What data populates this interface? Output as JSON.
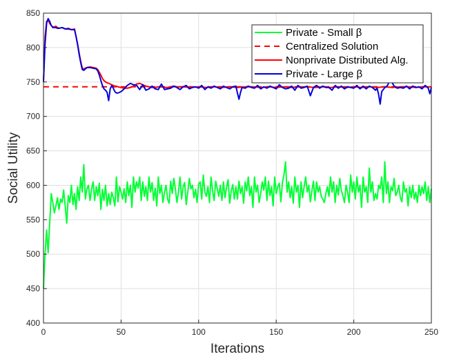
{
  "chart_data": {
    "type": "line",
    "xlabel": "Iterations",
    "ylabel": "Social Utility",
    "xlim": [
      0,
      250
    ],
    "ylim": [
      400,
      850
    ],
    "xticks": [
      "0",
      "50",
      "100",
      "150",
      "200",
      "250"
    ],
    "yticks": [
      "400",
      "450",
      "500",
      "550",
      "600",
      "650",
      "700",
      "750",
      "800",
      "850"
    ],
    "grid": true,
    "legend_position": "top-right",
    "series": [
      {
        "name": "Private  -  Small  β",
        "color": "#00ff33",
        "style": "solid",
        "x": [
          0,
          1,
          2,
          3,
          4,
          5,
          6,
          7,
          8,
          9,
          10,
          11,
          12,
          13,
          14,
          15,
          16,
          17,
          18,
          19,
          20,
          21,
          22,
          23,
          24,
          25,
          26,
          27,
          28,
          29,
          30,
          31,
          32,
          33,
          34,
          35,
          36,
          37,
          38,
          39,
          40,
          41,
          42,
          43,
          44,
          45,
          46,
          47,
          48,
          49,
          50,
          51,
          52,
          53,
          54,
          55,
          56,
          57,
          58,
          59,
          60,
          61,
          62,
          63,
          64,
          65,
          66,
          67,
          68,
          69,
          70,
          71,
          72,
          73,
          74,
          75,
          76,
          77,
          78,
          79,
          80,
          81,
          82,
          83,
          84,
          85,
          86,
          87,
          88,
          89,
          90,
          91,
          92,
          93,
          94,
          95,
          96,
          97,
          98,
          99,
          100,
          101,
          102,
          103,
          104,
          105,
          106,
          107,
          108,
          109,
          110,
          111,
          112,
          113,
          114,
          115,
          116,
          117,
          118,
          119,
          120,
          121,
          122,
          123,
          124,
          125,
          126,
          127,
          128,
          129,
          130,
          131,
          132,
          133,
          134,
          135,
          136,
          137,
          138,
          139,
          140,
          141,
          142,
          143,
          144,
          145,
          146,
          147,
          148,
          149,
          150,
          151,
          152,
          153,
          154,
          155,
          156,
          157,
          158,
          159,
          160,
          161,
          162,
          163,
          164,
          165,
          166,
          167,
          168,
          169,
          170,
          171,
          172,
          173,
          174,
          175,
          176,
          177,
          178,
          179,
          180,
          181,
          182,
          183,
          184,
          185,
          186,
          187,
          188,
          189,
          190,
          191,
          192,
          193,
          194,
          195,
          196,
          197,
          198,
          199,
          200,
          201,
          202,
          203,
          204,
          205,
          206,
          207,
          208,
          209,
          210,
          211,
          212,
          213,
          214,
          215,
          216,
          217,
          218,
          219,
          220,
          221,
          222,
          223,
          224,
          225,
          226,
          227,
          228,
          229,
          230,
          231,
          232,
          233,
          234,
          235,
          236,
          237,
          238,
          239,
          240,
          241,
          242,
          243,
          244,
          245,
          246,
          247,
          248,
          249,
          250
        ],
        "y": [
          450,
          500,
          535,
          502,
          545,
          588,
          575,
          560,
          570,
          582,
          565,
          580,
          575,
          593,
          570,
          545,
          585,
          575,
          600,
          572,
          588,
          565,
          598,
          578,
          612,
          590,
          630,
          580,
          595,
          600,
          578,
          595,
          605,
          578,
          598,
          585,
          603,
          565,
          594,
          578,
          600,
          570,
          588,
          572,
          590,
          582,
          570,
          612,
          576,
          598,
          590,
          580,
          595,
          575,
          605,
          585,
          600,
          568,
          612,
          590,
          605,
          596,
          612,
          578,
          605,
          584,
          598,
          578,
          612,
          590,
          604,
          578,
          596,
          570,
          612,
          588,
          600,
          575,
          590,
          600,
          580,
          574,
          606,
          588,
          610,
          595,
          575,
          590,
          612,
          580,
          598,
          604,
          572,
          590,
          610,
          595,
          600,
          582,
          594,
          575,
          602,
          605,
          580,
          615,
          590,
          584,
          598,
          575,
          612,
          592,
          578,
          606,
          595,
          584,
          600,
          578,
          605,
          582,
          597,
          608,
          574,
          592,
          601,
          580,
          598,
          580,
          606,
          588,
          598,
          574,
          605,
          592,
          612,
          585,
          598,
          568,
          612,
          590,
          600,
          575,
          588,
          605,
          593,
          612,
          578,
          606,
          585,
          598,
          570,
          612,
          588,
          598,
          603,
          576,
          604,
          615,
          634,
          590,
          605,
          582,
          598,
          574,
          612,
          590,
          600,
          568,
          605,
          582,
          598,
          612,
          590,
          600,
          576,
          592,
          606,
          578,
          605,
          590,
          598,
          584,
          580,
          575,
          588,
          598,
          584,
          612,
          590,
          605,
          575,
          600,
          586,
          610,
          592,
          585,
          575,
          600,
          590,
          575,
          615,
          590,
          605,
          580,
          612,
          590,
          600,
          568,
          612,
          590,
          598,
          575,
          625,
          590,
          605,
          578,
          588,
          580,
          600,
          595,
          612,
          575,
          634,
          588,
          605,
          575,
          598,
          592,
          610,
          585,
          590,
          600,
          582,
          576,
          605,
          590,
          595,
          570,
          598,
          582,
          600,
          580,
          590,
          575,
          600,
          585,
          598,
          588,
          605,
          578,
          598,
          575,
          595
        ]
      },
      {
        "name": "Centralized Solution",
        "color": "#ff0000",
        "style": "dashed",
        "x": [
          0,
          250
        ],
        "y": [
          743,
          743
        ]
      },
      {
        "name": "Nonprivate Distributed Alg.",
        "color": "#ff0000",
        "style": "solid",
        "x": [
          0,
          1,
          2,
          3,
          4,
          5,
          6,
          7,
          8,
          9,
          10,
          12,
          14,
          16,
          18,
          20,
          21,
          22,
          23,
          24,
          25,
          26,
          28,
          30,
          32,
          34,
          35,
          36,
          37,
          38,
          39,
          40,
          41,
          42,
          43,
          44,
          45,
          46,
          47,
          48,
          50,
          52,
          54,
          56,
          58,
          60,
          62,
          64,
          66,
          68,
          70,
          72,
          74,
          76,
          78,
          80,
          82,
          84,
          86,
          88,
          90,
          95,
          100,
          105,
          110,
          115,
          120,
          125,
          130,
          135,
          140,
          145,
          150,
          155,
          160,
          165,
          170,
          175,
          180,
          185,
          190,
          195,
          200,
          205,
          210,
          215,
          220,
          225,
          230,
          235,
          240,
          245,
          250
        ],
        "y": [
          752,
          815,
          838,
          840,
          835,
          832,
          830,
          830,
          831,
          829,
          828,
          829,
          827,
          828,
          826,
          827,
          816,
          805,
          792,
          780,
          770,
          769,
          771,
          772,
          771,
          770,
          768,
          764,
          760,
          755,
          752,
          750,
          749,
          748,
          747,
          746,
          745,
          744,
          744,
          743,
          742,
          741,
          741,
          742,
          744,
          747,
          748,
          746,
          744,
          743,
          742,
          742,
          743,
          743,
          742,
          742,
          743,
          744,
          743,
          743,
          743,
          742,
          743,
          742,
          743,
          742,
          743,
          742,
          743,
          743,
          742,
          743,
          742,
          743,
          742,
          743,
          743,
          742,
          743,
          742,
          743,
          742,
          743,
          742,
          743,
          742,
          743,
          742,
          743,
          743,
          742,
          743,
          743
        ]
      },
      {
        "name": "Private  -  Large  β",
        "color": "#0000dd",
        "style": "solid",
        "x": [
          0,
          1,
          2,
          3,
          4,
          5,
          6,
          7,
          8,
          9,
          10,
          12,
          14,
          16,
          18,
          20,
          21,
          22,
          23,
          24,
          25,
          26,
          28,
          30,
          32,
          34,
          35,
          36,
          37,
          38,
          39,
          40,
          41,
          42,
          43,
          44,
          45,
          46,
          47,
          48,
          50,
          52,
          54,
          56,
          58,
          60,
          62,
          64,
          66,
          68,
          70,
          72,
          74,
          76,
          78,
          80,
          82,
          84,
          86,
          88,
          90,
          92,
          94,
          96,
          98,
          100,
          102,
          104,
          106,
          108,
          110,
          112,
          114,
          116,
          118,
          120,
          122,
          124,
          125,
          126,
          127,
          128,
          130,
          132,
          134,
          136,
          138,
          140,
          142,
          144,
          146,
          148,
          150,
          152,
          154,
          156,
          158,
          160,
          162,
          164,
          166,
          168,
          170,
          172,
          174,
          176,
          178,
          180,
          182,
          184,
          186,
          188,
          190,
          192,
          194,
          196,
          198,
          200,
          202,
          204,
          206,
          208,
          210,
          212,
          214,
          215,
          216,
          217,
          218,
          220,
          221,
          222,
          223,
          224,
          226,
          228,
          230,
          232,
          234,
          236,
          238,
          240,
          242,
          244,
          246,
          248,
          249,
          250
        ],
        "y": [
          750,
          805,
          835,
          842,
          838,
          832,
          829,
          829,
          829,
          828,
          828,
          829,
          827,
          827,
          826,
          826,
          816,
          804,
          790,
          778,
          768,
          767,
          771,
          771,
          770,
          769,
          766,
          760,
          752,
          745,
          740,
          738,
          735,
          723,
          740,
          745,
          741,
          736,
          734,
          734,
          736,
          740,
          745,
          748,
          746,
          745,
          739,
          746,
          738,
          740,
          744,
          740,
          739,
          747,
          739,
          740,
          741,
          744,
          742,
          739,
          743,
          745,
          740,
          742,
          743,
          741,
          745,
          739,
          743,
          741,
          744,
          742,
          740,
          744,
          742,
          740,
          743,
          744,
          734,
          725,
          735,
          742,
          741,
          744,
          742,
          741,
          745,
          740,
          743,
          741,
          744,
          742,
          740,
          746,
          742,
          740,
          741,
          744,
          738,
          745,
          741,
          742,
          744,
          730,
          742,
          745,
          741,
          744,
          742,
          742,
          738,
          745,
          741,
          744,
          740,
          743,
          742,
          741,
          745,
          740,
          744,
          740,
          744,
          742,
          738,
          741,
          732,
          718,
          736,
          742,
          743,
          746,
          753,
          752,
          744,
          741,
          742,
          741,
          744,
          740,
          744,
          742,
          743,
          740,
          745,
          741,
          733,
          742
        ]
      }
    ]
  }
}
